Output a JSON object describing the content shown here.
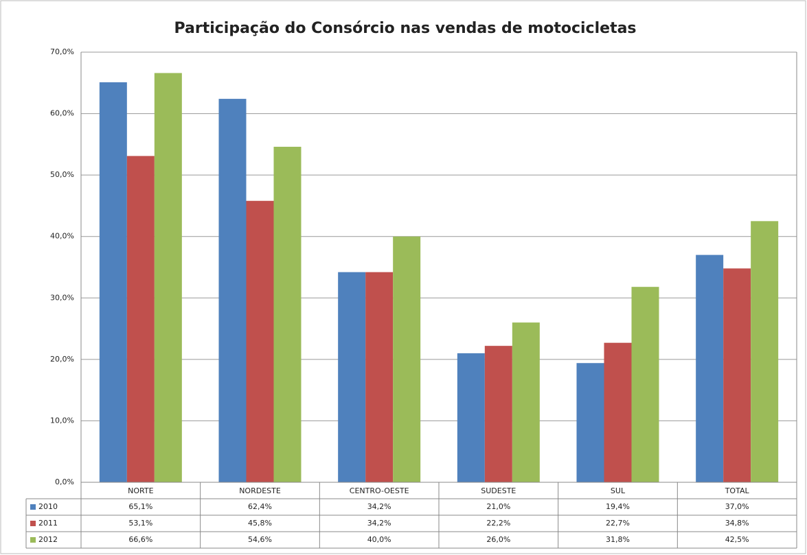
{
  "chart_data": {
    "type": "bar",
    "title": "Participação do Consórcio nas vendas de motocicletas",
    "categories": [
      "NORTE",
      "NORDESTE",
      "CENTRO-OESTE",
      "SUDESTE",
      "SUL",
      "TOTAL"
    ],
    "series": [
      {
        "name": "2010",
        "color": "#4f81bd",
        "values": [
          65.1,
          62.4,
          34.2,
          21.0,
          19.4,
          37.0
        ],
        "value_labels": [
          "65,1%",
          "62,4%",
          "34,2%",
          "21,0%",
          "19,4%",
          "37,0%"
        ]
      },
      {
        "name": "2011",
        "color": "#c0504d",
        "values": [
          53.1,
          45.8,
          34.2,
          22.2,
          22.7,
          34.8
        ],
        "value_labels": [
          "53,1%",
          "45,8%",
          "34,2%",
          "22,2%",
          "22,7%",
          "34,8%"
        ]
      },
      {
        "name": "2012",
        "color": "#9bbb59",
        "values": [
          66.6,
          54.6,
          40.0,
          26.0,
          31.8,
          42.5
        ],
        "value_labels": [
          "66,6%",
          "54,6%",
          "40,0%",
          "26,0%",
          "31,8%",
          "42,5%"
        ]
      }
    ],
    "ylim": [
      0,
      70
    ],
    "yticks": [
      {
        "value": 0,
        "label": "0,0%"
      },
      {
        "value": 10,
        "label": "10,0%"
      },
      {
        "value": 20,
        "label": "20,0%"
      },
      {
        "value": 30,
        "label": "30,0%"
      },
      {
        "value": 40,
        "label": "40,0%"
      },
      {
        "value": 50,
        "label": "50,0%"
      },
      {
        "value": 60,
        "label": "60,0%"
      },
      {
        "value": 70,
        "label": "70,0%"
      }
    ],
    "grid": true
  }
}
